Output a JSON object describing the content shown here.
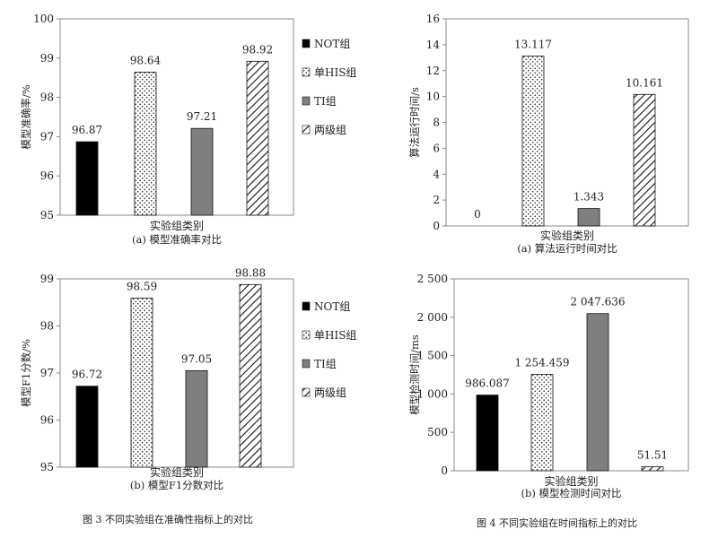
{
  "figure3": {
    "caption": "图 3 不同实验组在准确性指标上的对比"
  },
  "figure4": {
    "caption": "图 4 不同实验组在时间指标上的对比"
  },
  "chart_data": [
    {
      "type": "bar",
      "categories": [
        "NOT组",
        "单HIS组",
        "TI组",
        "两级组"
      ],
      "values": [
        96.87,
        98.64,
        97.21,
        98.92
      ],
      "value_labels": [
        "96.87",
        "98.64",
        "97.21",
        "98.92"
      ],
      "xlabel": "实验组类别",
      "subtitle": "(a) 模型准确率对比",
      "ylabel": "模型准确率/%",
      "ylim": [
        95,
        100
      ],
      "yticks": [
        "95",
        "96",
        "97",
        "98",
        "99",
        "100"
      ],
      "grid": false,
      "legend": "right",
      "patterns": [
        "solid-black",
        "dots",
        "solid-gray",
        "diagonal"
      ]
    },
    {
      "type": "bar",
      "categories": [
        "NOT组",
        "单HIS组",
        "TI组",
        "两级组"
      ],
      "values": [
        0,
        13.117,
        1.343,
        10.161
      ],
      "value_labels": [
        "0",
        "13.117",
        "1.343",
        "10.161"
      ],
      "xlabel": "实验组类别",
      "subtitle": "(a) 算法运行时间对比",
      "ylabel": "算法运行时间/s",
      "ylim": [
        0,
        16
      ],
      "yticks": [
        "0",
        "2",
        "4",
        "6",
        "8",
        "10",
        "12",
        "14",
        "16"
      ],
      "grid": false,
      "patterns": [
        "solid-black",
        "dots",
        "solid-gray",
        "diagonal"
      ]
    },
    {
      "type": "bar",
      "categories": [
        "NOT组",
        "单HIS组",
        "TI组",
        "两级组"
      ],
      "values": [
        96.72,
        98.59,
        97.05,
        98.88
      ],
      "value_labels": [
        "96.72",
        "98.59",
        "97.05",
        "98.88"
      ],
      "xlabel": "实验组类别",
      "subtitle": "(b) 模型F1分数对比",
      "ylabel": "模型F1分数/%",
      "ylim": [
        95,
        99
      ],
      "yticks": [
        "95",
        "96",
        "97",
        "98",
        "99"
      ],
      "grid": false,
      "legend": "right",
      "patterns": [
        "solid-black",
        "dots",
        "solid-gray",
        "diagonal"
      ]
    },
    {
      "type": "bar",
      "categories": [
        "NOT组",
        "单HIS组",
        "TI组",
        "两级组"
      ],
      "values": [
        986.087,
        1254.459,
        2047.636,
        51.51
      ],
      "value_labels": [
        "986.087",
        "1 254.459",
        "2 047.636",
        "51.51"
      ],
      "xlabel": "实验组类别",
      "subtitle": "(b) 模型检测时间对比",
      "ylabel": "模型检测时间/ms",
      "ylim": [
        0,
        2500
      ],
      "yticks": [
        "0",
        "500",
        "1 000",
        "1 500",
        "2 000",
        "2 500"
      ],
      "grid": false,
      "patterns": [
        "solid-black",
        "dots",
        "solid-gray",
        "diagonal"
      ]
    }
  ]
}
